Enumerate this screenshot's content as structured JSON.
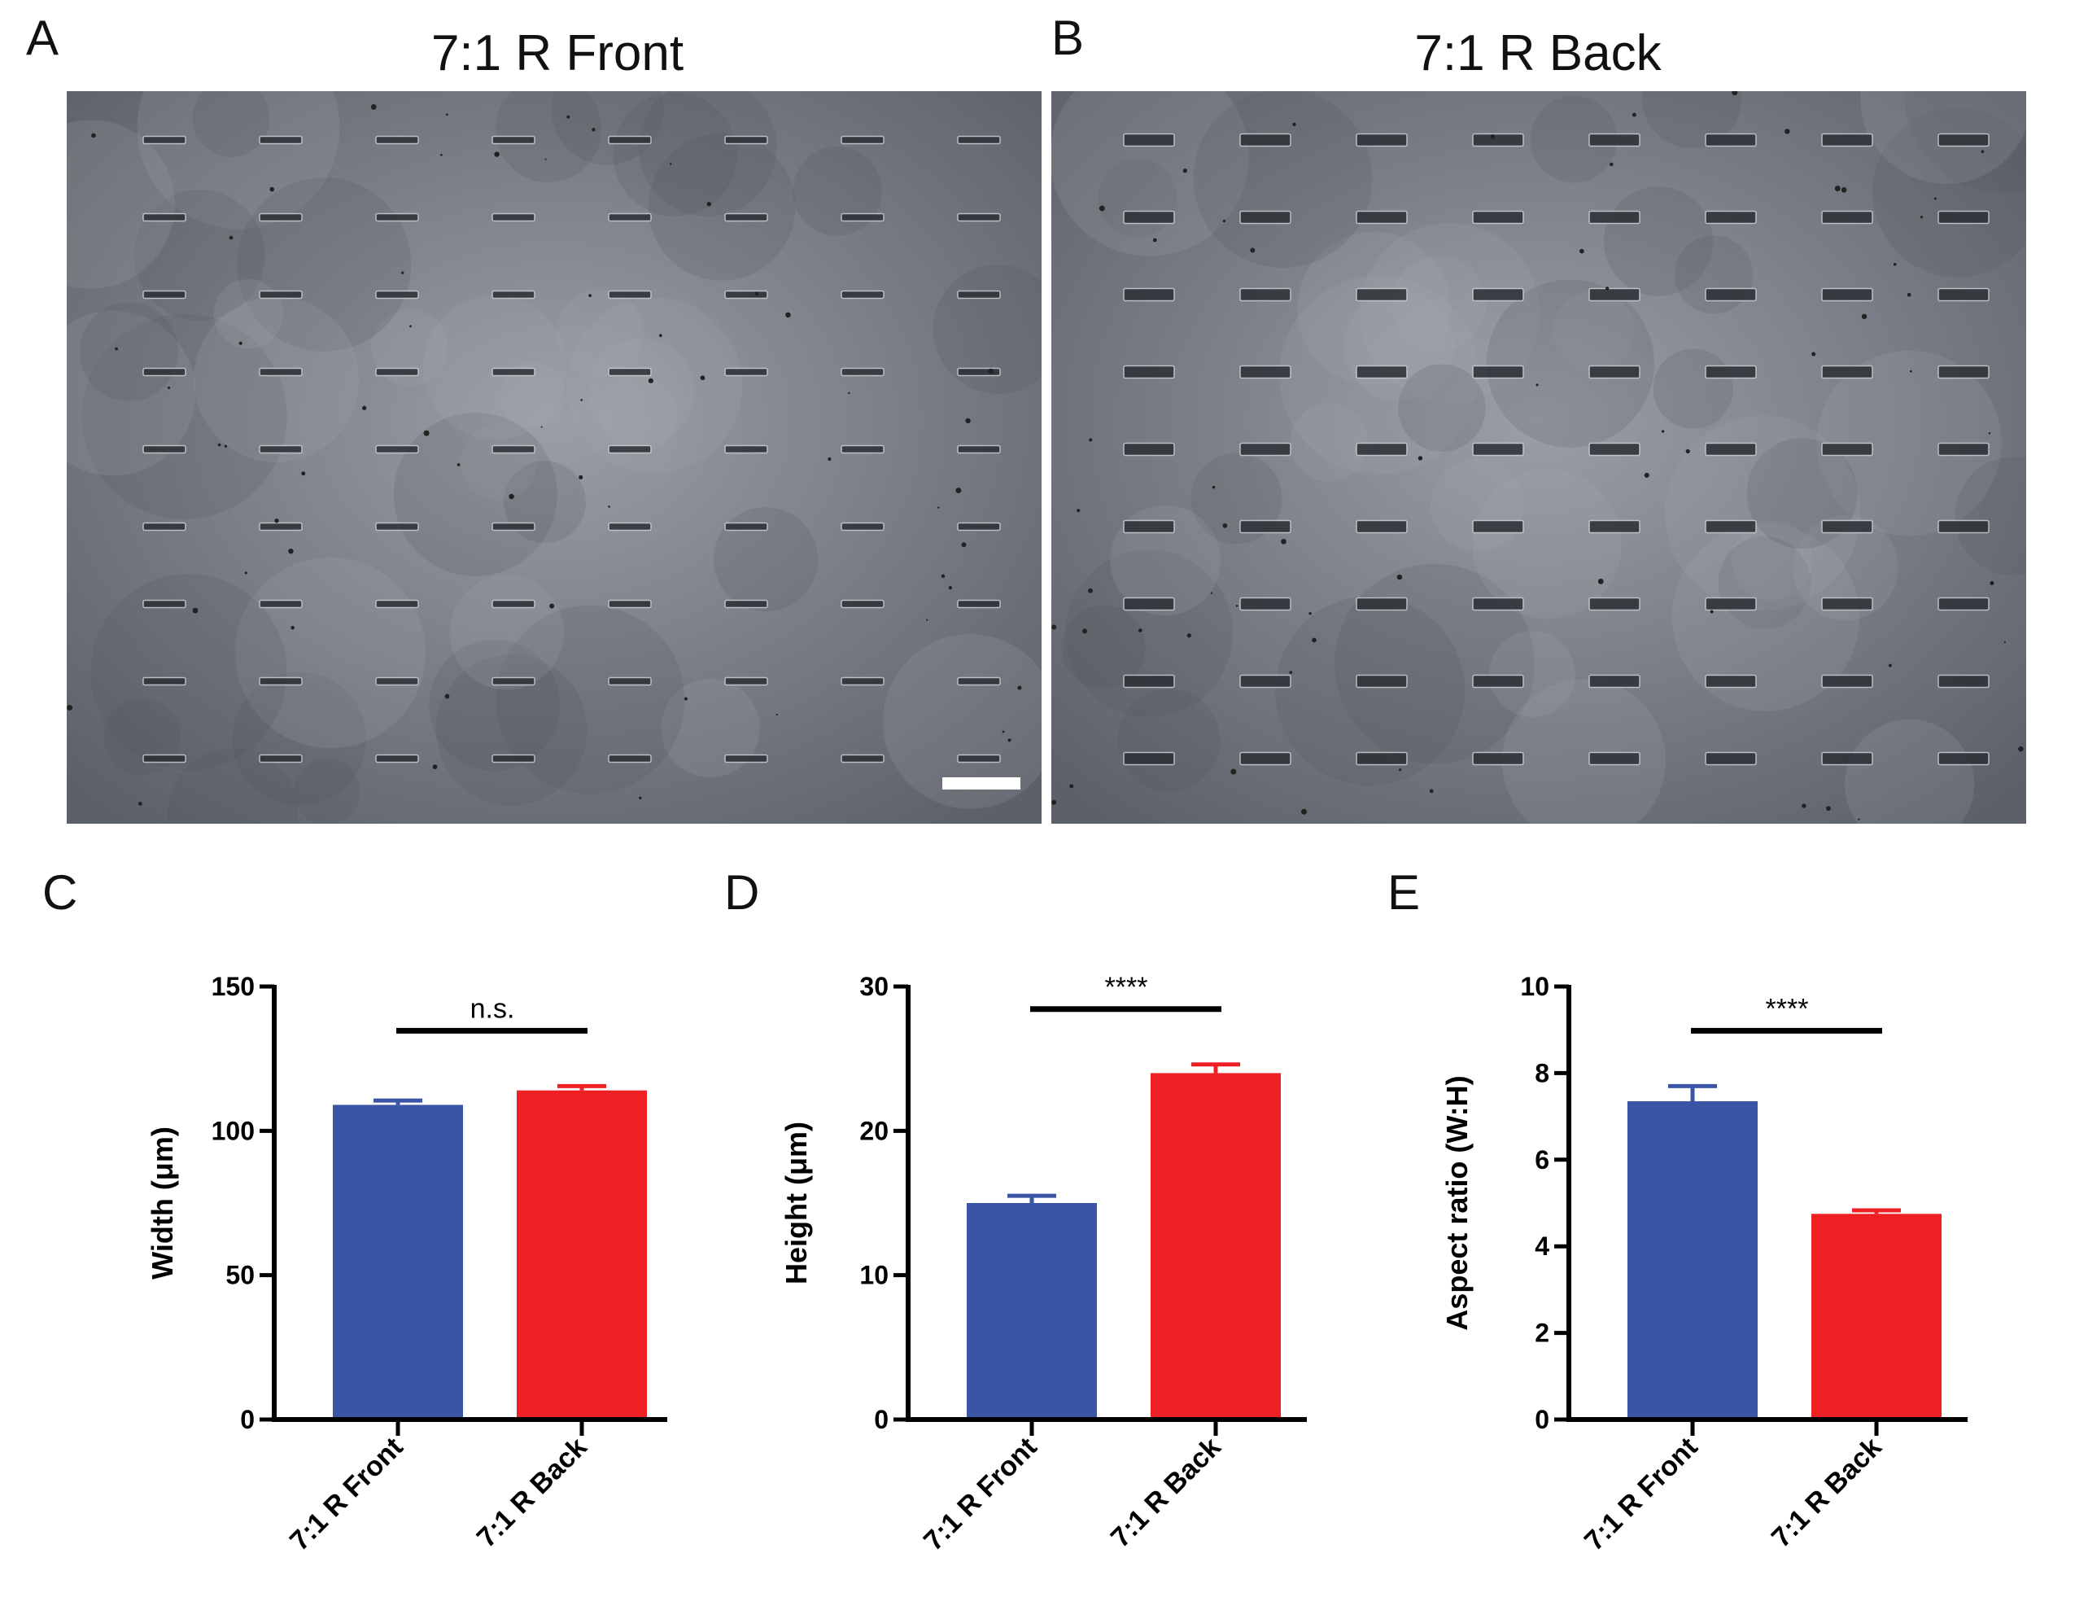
{
  "panels": {
    "A": {
      "letter": "A",
      "title": "7:1 R Front"
    },
    "B": {
      "letter": "B",
      "title": "7:1 R Back"
    },
    "C": {
      "letter": "C"
    },
    "D": {
      "letter": "D"
    },
    "E": {
      "letter": "E"
    }
  },
  "colors": {
    "front": "#3a55a6",
    "back": "#ee2024",
    "axis": "#000000"
  },
  "chart_data": [
    {
      "type": "bar",
      "panel": "C",
      "categories": [
        "7:1 R Front",
        "7:1 R Back"
      ],
      "values": [
        109,
        114
      ],
      "errors": [
        1.5,
        1.5
      ],
      "ylabel": "Width (μm)",
      "ylim": [
        0,
        150
      ],
      "yticks": [
        0,
        50,
        100,
        150
      ],
      "significance": "n.s."
    },
    {
      "type": "bar",
      "panel": "D",
      "categories": [
        "7:1 R Front",
        "7:1 R Back"
      ],
      "values": [
        15,
        24
      ],
      "errors": [
        0.5,
        0.6
      ],
      "ylabel": "Height (μm)",
      "ylim": [
        0,
        30
      ],
      "yticks": [
        0,
        10,
        20,
        30
      ],
      "significance": "****"
    },
    {
      "type": "bar",
      "panel": "E",
      "categories": [
        "7:1 R Front",
        "7:1 R Back"
      ],
      "values": [
        7.35,
        4.75
      ],
      "errors": [
        0.35,
        0.08
      ],
      "ylabel": "Aspect ratio (W:H)",
      "ylim": [
        0,
        10
      ],
      "yticks": [
        0,
        2,
        4,
        6,
        8,
        10
      ],
      "significance": "****"
    }
  ]
}
